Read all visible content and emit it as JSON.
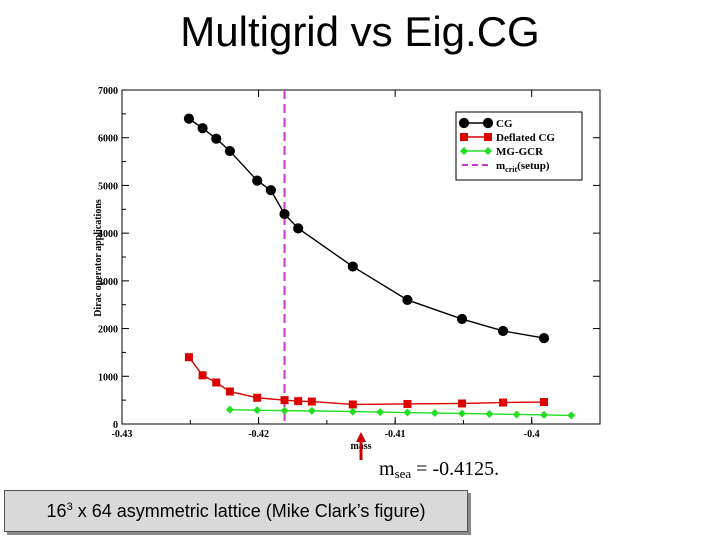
{
  "slide": {
    "title": "Multigrid vs Eig.CG",
    "msea_main": "m",
    "msea_sub": "sea",
    "msea_value": " = -0.4125.",
    "caption_pre": "16",
    "caption_sup": "3",
    "caption_post": " x 64 asymmetric lattice (Mike Clark’s figure)",
    "arrow_color": "#cc0000"
  },
  "chart_data": {
    "type": "line",
    "title": "",
    "xlabel": "mass",
    "ylabel": "Dirac operator applications",
    "xlim": [
      -0.43,
      -0.395
    ],
    "ylim": [
      0,
      7000
    ],
    "x_ticks": [
      -0.43,
      -0.42,
      -0.41,
      -0.4
    ],
    "x_tick_labels": [
      "-0.43",
      "-0.42",
      "-0.41",
      "-0.4"
    ],
    "y_ticks": [
      0,
      1000,
      2000,
      3000,
      4000,
      5000,
      6000,
      7000
    ],
    "y_tick_labels": [
      "0",
      "1000",
      "2000",
      "3000",
      "4000",
      "5000",
      "6000",
      "7000"
    ],
    "grid": false,
    "legend_position": "top-right",
    "series": [
      {
        "name": "CG",
        "color": "#000000",
        "marker": "circle",
        "x": [
          -0.4251,
          -0.4241,
          -0.4231,
          -0.4221,
          -0.4201,
          -0.4191,
          -0.4181,
          -0.4171,
          -0.4131,
          -0.4091,
          -0.4051,
          -0.4021,
          -0.3991
        ],
        "y": [
          6400,
          6200,
          5980,
          5720,
          5100,
          4900,
          4400,
          4100,
          3300,
          2600,
          2200,
          1950,
          1800
        ]
      },
      {
        "name": "Deflated CG",
        "color": "#dd0000",
        "marker": "square",
        "x": [
          -0.4251,
          -0.4241,
          -0.4231,
          -0.4221,
          -0.4201,
          -0.4181,
          -0.4171,
          -0.4161,
          -0.4131,
          -0.4091,
          -0.4051,
          -0.4021,
          -0.3991
        ],
        "y": [
          1400,
          1020,
          870,
          680,
          550,
          500,
          480,
          470,
          410,
          420,
          430,
          450,
          460
        ]
      },
      {
        "name": "MG-GCR",
        "color": "#22dd22",
        "marker": "diamond",
        "x": [
          -0.4221,
          -0.4201,
          -0.4181,
          -0.4161,
          -0.4131,
          -0.4111,
          -0.4091,
          -0.4071,
          -0.4051,
          -0.4031,
          -0.4011,
          -0.3991,
          -0.3971
        ],
        "y": [
          300,
          290,
          280,
          275,
          260,
          250,
          240,
          230,
          220,
          210,
          200,
          190,
          180
        ]
      }
    ],
    "vline": {
      "label_main": "m",
      "label_sub": "crit",
      "label_post": "(setup)",
      "x": -0.4181,
      "color": "#cc33cc",
      "style": "dashed"
    }
  }
}
